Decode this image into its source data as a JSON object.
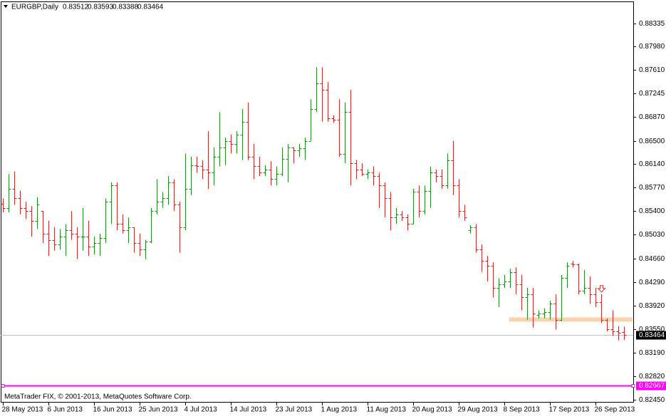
{
  "chart_data": {
    "type": "ohlc",
    "symbol": "EURGBP,Daily",
    "footer": "MetaTrader FIX, © 2001-2013, MetaQuotes Software Corp.",
    "up_color": "#1f8f1f",
    "down_color": "#cc2a2a",
    "categories": [
      "28 May 2013",
      null,
      null,
      null,
      null,
      null,
      null,
      null,
      "6 Jun 2013",
      null,
      null,
      null,
      null,
      null,
      null,
      null,
      "16 Jun 2013",
      null,
      null,
      null,
      null,
      null,
      null,
      null,
      "25 Jun 2013",
      null,
      null,
      null,
      null,
      null,
      null,
      null,
      "4 Jul 2013",
      null,
      null,
      null,
      null,
      null,
      null,
      null,
      "14 Jul 2013",
      null,
      null,
      null,
      null,
      null,
      null,
      null,
      "23 Jul 2013",
      null,
      null,
      null,
      null,
      null,
      null,
      null,
      "1 Aug 2013",
      null,
      null,
      null,
      null,
      null,
      null,
      null,
      "11 Aug 2013",
      null,
      null,
      null,
      null,
      null,
      null,
      null,
      "20 Aug 2013",
      null,
      null,
      null,
      null,
      null,
      null,
      null,
      "29 Aug 2013",
      null,
      null,
      null,
      null,
      null,
      null,
      null,
      "8 Sep 2013",
      null,
      null,
      null,
      null,
      null,
      null,
      null,
      "17 Sep 2013",
      null,
      null,
      null,
      null,
      null,
      null,
      null,
      "26 Sep 2013",
      null,
      null,
      null,
      null,
      null
    ],
    "open": [
      0.8552,
      0.8545,
      0.8575,
      0.856,
      0.8545,
      0.854,
      0.8525,
      0.854,
      0.8505,
      0.8495,
      0.8488,
      0.85,
      0.851,
      0.8505,
      0.85,
      0.85,
      0.8485,
      0.849,
      0.8498,
      0.8555,
      0.858,
      0.852,
      0.851,
      0.8515,
      0.849,
      0.848,
      0.8492,
      0.854,
      0.8555,
      0.856,
      0.8585,
      0.855,
      0.8515,
      0.8575,
      0.8612,
      0.861,
      0.8605,
      0.86,
      0.8625,
      0.864,
      0.865,
      0.8645,
      0.866,
      0.868,
      0.8625,
      0.861,
      0.86,
      0.8605,
      0.859,
      0.8598,
      0.8622,
      0.864,
      0.8635,
      0.8638,
      0.865,
      0.87,
      0.874,
      0.873,
      0.8685,
      0.8683,
      0.863,
      0.8695,
      0.8615,
      0.8605,
      0.8598,
      0.86,
      0.8595,
      0.858,
      0.856,
      0.853,
      0.8535,
      0.853,
      0.852,
      0.857,
      0.854,
      0.8572,
      0.86,
      0.8595,
      0.858,
      0.862,
      0.858,
      0.854,
      0.851,
      0.8515,
      0.848,
      0.8462,
      0.8455,
      0.842,
      0.8425,
      0.843,
      0.8445,
      0.8425,
      0.8405,
      0.841,
      0.8378,
      0.838,
      0.8382,
      0.8395,
      0.837,
      0.8435,
      0.8458,
      0.8457,
      0.8415,
      0.842,
      0.841,
      0.8398,
      0.837,
      0.8355,
      0.8352,
      0.83512
    ],
    "high": [
      0.856,
      0.8598,
      0.8602,
      0.8572,
      0.8555,
      0.8548,
      0.8562,
      0.854,
      0.8525,
      0.8515,
      0.8512,
      0.852,
      0.854,
      0.8515,
      0.8545,
      0.8525,
      0.85,
      0.8505,
      0.856,
      0.8585,
      0.8585,
      0.8535,
      0.853,
      0.8515,
      0.8505,
      0.8495,
      0.8545,
      0.859,
      0.857,
      0.8595,
      0.859,
      0.8555,
      0.863,
      0.8625,
      0.8625,
      0.862,
      0.8665,
      0.864,
      0.8695,
      0.8655,
      0.866,
      0.8665,
      0.87,
      0.871,
      0.8645,
      0.8625,
      0.8612,
      0.8618,
      0.861,
      0.864,
      0.8645,
      0.864,
      0.8645,
      0.8655,
      0.8715,
      0.8765,
      0.8765,
      0.8742,
      0.869,
      0.8715,
      0.871,
      0.873,
      0.862,
      0.8615,
      0.8605,
      0.861,
      0.86,
      0.8585,
      0.857,
      0.8545,
      0.854,
      0.8535,
      0.8575,
      0.858,
      0.858,
      0.861,
      0.8605,
      0.8605,
      0.863,
      0.865,
      0.859,
      0.855,
      0.8518,
      0.852,
      0.8488,
      0.847,
      0.846,
      0.8435,
      0.844,
      0.845,
      0.8452,
      0.844,
      0.842,
      0.842,
      0.8385,
      0.8388,
      0.84,
      0.841,
      0.844,
      0.846,
      0.8462,
      0.8458,
      0.8448,
      0.8438,
      0.842,
      0.841,
      0.8372,
      0.8385,
      0.836,
      0.83593
    ],
    "low": [
      0.8538,
      0.8538,
      0.855,
      0.8535,
      0.8528,
      0.85,
      0.8512,
      0.849,
      0.847,
      0.8478,
      0.848,
      0.847,
      0.8495,
      0.8465,
      0.8478,
      0.847,
      0.8472,
      0.847,
      0.849,
      0.852,
      0.851,
      0.8505,
      0.849,
      0.8475,
      0.847,
      0.8465,
      0.849,
      0.8535,
      0.8545,
      0.855,
      0.854,
      0.8475,
      0.851,
      0.8565,
      0.86,
      0.859,
      0.8575,
      0.858,
      0.861,
      0.8612,
      0.863,
      0.863,
      0.862,
      0.862,
      0.859,
      0.8595,
      0.8595,
      0.858,
      0.858,
      0.8595,
      0.8585,
      0.8615,
      0.8625,
      0.862,
      0.865,
      0.8695,
      0.868,
      0.868,
      0.8678,
      0.8625,
      0.8615,
      0.858,
      0.859,
      0.8595,
      0.859,
      0.858,
      0.8545,
      0.853,
      0.851,
      0.852,
      0.8525,
      0.851,
      0.852,
      0.853,
      0.8535,
      0.8545,
      0.8585,
      0.8575,
      0.8575,
      0.8565,
      0.853,
      0.8525,
      0.8505,
      0.8475,
      0.8445,
      0.843,
      0.8405,
      0.839,
      0.842,
      0.842,
      0.841,
      0.8385,
      0.837,
      0.8358,
      0.8372,
      0.8372,
      0.837,
      0.8355,
      0.8368,
      0.842,
      0.8452,
      0.841,
      0.841,
      0.8395,
      0.839,
      0.8365,
      0.8352,
      0.8345,
      0.8338,
      0.83388
    ],
    "close": [
      0.8545,
      0.8575,
      0.856,
      0.8545,
      0.854,
      0.8525,
      0.855,
      0.8505,
      0.8495,
      0.8488,
      0.85,
      0.851,
      0.8505,
      0.85,
      0.85,
      0.8485,
      0.849,
      0.8498,
      0.8555,
      0.858,
      0.852,
      0.851,
      0.8515,
      0.849,
      0.848,
      0.8492,
      0.854,
      0.8555,
      0.856,
      0.8585,
      0.855,
      0.8515,
      0.8575,
      0.8612,
      0.861,
      0.8605,
      0.86,
      0.8625,
      0.864,
      0.865,
      0.8645,
      0.866,
      0.868,
      0.8625,
      0.861,
      0.86,
      0.8605,
      0.859,
      0.8598,
      0.8622,
      0.864,
      0.8635,
      0.8638,
      0.865,
      0.87,
      0.874,
      0.873,
      0.8685,
      0.8683,
      0.863,
      0.8695,
      0.8615,
      0.8605,
      0.8598,
      0.86,
      0.8595,
      0.858,
      0.856,
      0.853,
      0.8535,
      0.853,
      0.852,
      0.857,
      0.854,
      0.8572,
      0.86,
      0.8595,
      0.858,
      0.862,
      0.858,
      0.854,
      0.853,
      0.8515,
      0.848,
      0.8462,
      0.8455,
      0.842,
      0.8425,
      0.843,
      0.8445,
      0.8425,
      0.8405,
      0.841,
      0.838,
      0.838,
      0.8382,
      0.8395,
      0.837,
      0.8435,
      0.8455,
      0.8457,
      0.8415,
      0.842,
      0.841,
      0.8398,
      0.837,
      0.8355,
      0.8352,
      0.835,
      0.83464
    ],
    "ylim": [
      0.82405,
      0.8868
    ],
    "yticks": [
      0.88335,
      {
        "value": 0.8798,
        "label": "0.87980"
      },
      {
        "value": 0.8761,
        "label": "0.87610"
      },
      0.87245,
      {
        "value": 0.8687,
        "label": "0.86870"
      },
      {
        "value": 0.865,
        "label": "0.86500"
      },
      {
        "value": 0.8614,
        "label": "0.86140"
      },
      {
        "value": 0.8577,
        "label": "0.85770"
      },
      {
        "value": 0.854,
        "label": "0.85400"
      },
      {
        "value": 0.8503,
        "label": "0.85030"
      },
      {
        "value": 0.8466,
        "label": "0.84660"
      },
      {
        "value": 0.8429,
        "label": "0.84290"
      },
      {
        "value": 0.8392,
        "label": "0.83920"
      },
      {
        "value": 0.8355,
        "label": "0.83550"
      },
      {
        "value": 0.8319,
        "label": "0.83190"
      },
      {
        "value": 0.8282,
        "label": "0.82820"
      },
      {
        "value": 0.8245,
        "label": "0.82450"
      }
    ],
    "level": {
      "value": 0.82667,
      "color": "#ff00ff"
    },
    "zone": {
      "start": 89,
      "value": 0.83705,
      "color": "#fbd3ae"
    },
    "arrow": {
      "index": 105,
      "value": 0.8418,
      "color": "#e03030"
    }
  }
}
